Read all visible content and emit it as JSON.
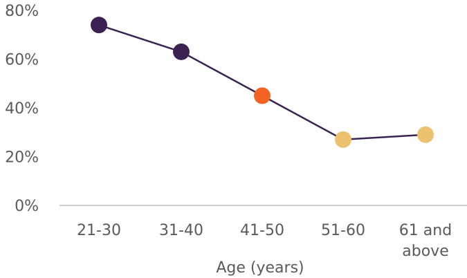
{
  "chart_data": {
    "type": "line",
    "categories": [
      [
        "21-30"
      ],
      [
        "31-40"
      ],
      [
        "41-50"
      ],
      [
        "51-60"
      ],
      [
        "61 and",
        "above"
      ]
    ],
    "values": [
      74,
      63,
      45,
      27,
      29
    ],
    "point_colors": [
      "#3a2352",
      "#3a2352",
      "#f26322",
      "#ecc26e",
      "#ecc26e"
    ],
    "line_color": "#3a2352",
    "axis_color": "#bdbdbd",
    "ylim": [
      0,
      80
    ],
    "yticks": [
      0,
      20,
      40,
      60,
      80
    ],
    "ytick_suffix": "%",
    "xlabel": "Age (years)",
    "ylabel": "",
    "title": "",
    "grid": false,
    "legend": "none"
  }
}
